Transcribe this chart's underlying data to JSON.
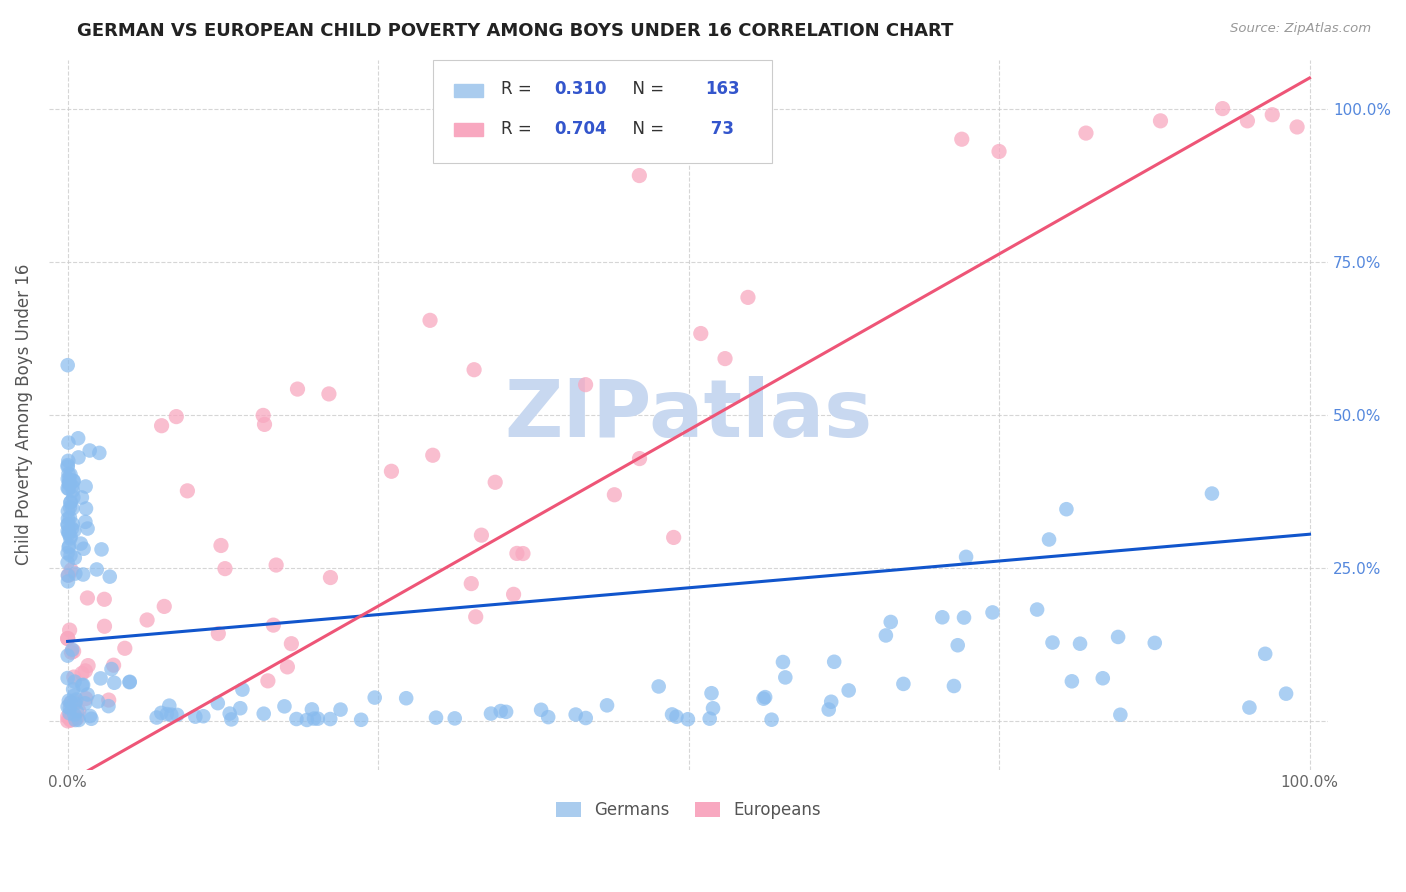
{
  "title": "GERMAN VS EUROPEAN CHILD POVERTY AMONG BOYS UNDER 16 CORRELATION CHART",
  "source": "Source: ZipAtlas.com",
  "ylabel": "Child Poverty Among Boys Under 16",
  "german_color": "#88BBEE",
  "european_color": "#F8A8C0",
  "german_trend_color": "#1155CC",
  "european_trend_color": "#EE5577",
  "watermark": "ZIPatlas",
  "watermark_color": "#C8D8F0",
  "seed": 42,
  "german_trend": [
    0.0,
    0.13,
    1.0,
    0.305
  ],
  "european_trend": [
    0.0,
    -0.1,
    1.0,
    1.05
  ],
  "background": "#FFFFFF",
  "grid_color": "#CCCCCC",
  "tick_label_color": "#5588DD",
  "axis_label_color": "#555555",
  "title_color": "#222222",
  "source_color": "#999999"
}
